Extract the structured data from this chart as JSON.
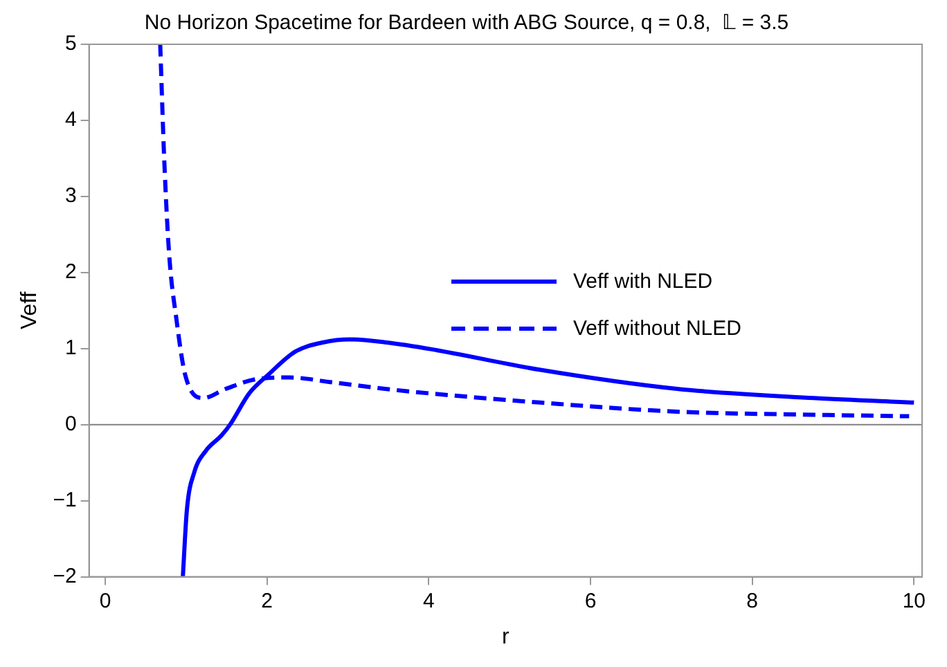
{
  "chart_data": {
    "type": "line",
    "title": "No Horizon Spacetime for Bardeen with ABG Source, q = 0.8,  𝕃 = 3.5",
    "xlabel": "r",
    "ylabel": "Veff",
    "xlim": [
      -0.2,
      10.1
    ],
    "ylim": [
      -2,
      5
    ],
    "xticks": [
      0,
      2,
      4,
      6,
      8,
      10
    ],
    "yticks": [
      -2,
      -1,
      0,
      1,
      2,
      3,
      4,
      5
    ],
    "grid": false,
    "legend": "right",
    "marker": "none",
    "ref_lines": [
      {
        "axis": "y",
        "value": 0,
        "color": "#808080"
      }
    ],
    "series": [
      {
        "name": "Veff with NLED",
        "color": "#0000ff",
        "line_style": "solid",
        "x": [
          0.96,
          1.01,
          1.1,
          1.24,
          1.44,
          1.55,
          1.78,
          2.01,
          2.35,
          2.69,
          3.03,
          3.48,
          4.04,
          5.38,
          7.07,
          8.76,
          10.0
        ],
        "values": [
          -2,
          -1.12,
          -0.63,
          -0.35,
          -0.14,
          0.01,
          0.41,
          0.65,
          0.96,
          1.08,
          1.12,
          1.08,
          0.99,
          0.72,
          0.47,
          0.35,
          0.29
        ]
      },
      {
        "name": "Veff without NLED",
        "color": "#0000ff",
        "line_style": "dashed",
        "x": [
          0.68,
          0.73,
          0.79,
          0.88,
          0.99,
          1.21,
          1.49,
          1.88,
          2.28,
          2.78,
          3.46,
          4.02,
          5.38,
          7.07,
          8.76,
          9.94
        ],
        "values": [
          5,
          3.48,
          2.25,
          1.39,
          0.65,
          0.35,
          0.47,
          0.6,
          0.62,
          0.56,
          0.47,
          0.41,
          0.29,
          0.17,
          0.13,
          0.11
        ]
      }
    ]
  }
}
